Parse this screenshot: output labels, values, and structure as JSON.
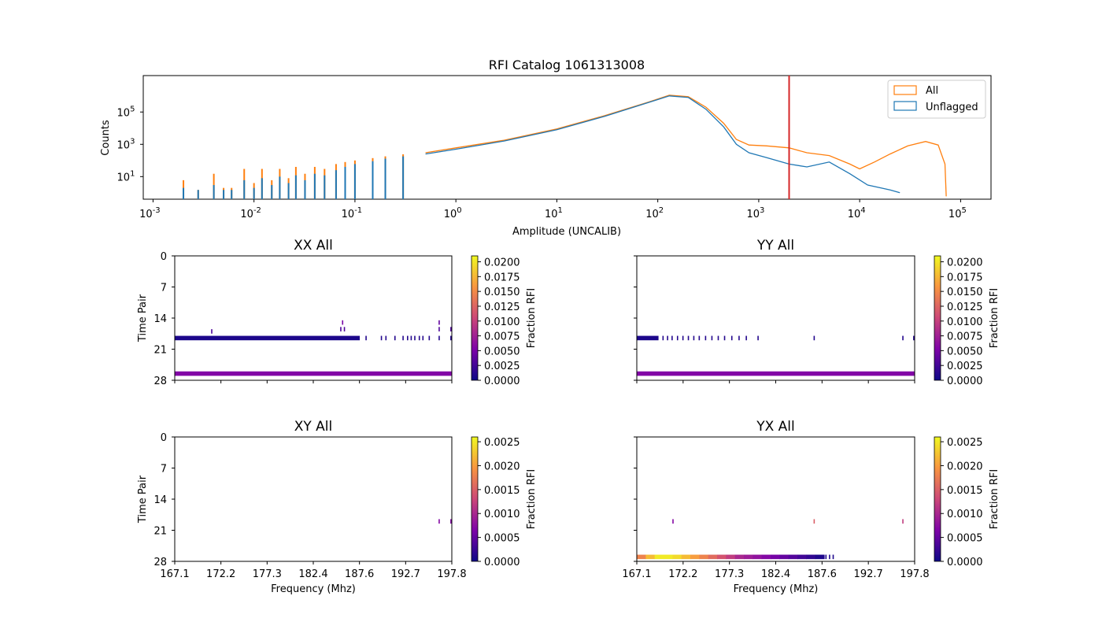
{
  "colors": {
    "all": "#ff7f0e",
    "unflagged": "#1f77b4",
    "cutoff": "#d62728",
    "cmap": [
      "#0d0887",
      "#7e03a8",
      "#cc4778",
      "#f89540",
      "#f0f921"
    ]
  },
  "chart_data": [
    {
      "type": "line",
      "title": "RFI Catalog 1061313008",
      "xlabel": "Amplitude (UNCALIB)",
      "ylabel": "Counts",
      "xscale": "log",
      "yscale": "log",
      "xlim": [
        0.0008,
        200000
      ],
      "ylim": [
        0.4,
        18000000
      ],
      "xticks": [
        {
          "e": "-3",
          "v": 0.001
        },
        {
          "e": "-2",
          "v": 0.01
        },
        {
          "e": "-1",
          "v": 0.1
        },
        {
          "e": "0",
          "v": 1
        },
        {
          "e": "1",
          "v": 10
        },
        {
          "e": "2",
          "v": 100
        },
        {
          "e": "3",
          "v": 1000
        },
        {
          "e": "4",
          "v": 10000
        },
        {
          "e": "5",
          "v": 100000
        }
      ],
      "yticks": [
        {
          "e": "1",
          "v": 10
        },
        {
          "e": "3",
          "v": 1000
        },
        {
          "e": "5",
          "v": 100000
        }
      ],
      "legend": {
        "position": "top-right",
        "entries": [
          "All",
          "Unflagged"
        ]
      },
      "vline": 2000,
      "series": [
        {
          "name": "All",
          "points": [
            [
              0.5,
              300
            ],
            [
              1,
              600
            ],
            [
              3,
              1800
            ],
            [
              10,
              9000
            ],
            [
              30,
              60000
            ],
            [
              80,
              400000
            ],
            [
              130,
              1100000
            ],
            [
              200,
              900000
            ],
            [
              300,
              200000
            ],
            [
              450,
              20000
            ],
            [
              600,
              2000
            ],
            [
              800,
              900
            ],
            [
              1200,
              800
            ],
            [
              2000,
              600
            ],
            [
              3000,
              300
            ],
            [
              5000,
              200
            ],
            [
              8000,
              60
            ],
            [
              10000,
              30
            ],
            [
              14000,
              80
            ],
            [
              20000,
              250
            ],
            [
              30000,
              800
            ],
            [
              45000,
              1500
            ],
            [
              60000,
              900
            ],
            [
              70000,
              60
            ],
            [
              72000,
              0.6
            ]
          ]
        },
        {
          "name": "Unflagged",
          "points": [
            [
              0.5,
              250
            ],
            [
              1,
              500
            ],
            [
              3,
              1600
            ],
            [
              10,
              8000
            ],
            [
              30,
              55000
            ],
            [
              80,
              380000
            ],
            [
              130,
              1000000
            ],
            [
              200,
              800000
            ],
            [
              300,
              150000
            ],
            [
              450,
              12000
            ],
            [
              600,
              1000
            ],
            [
              800,
              300
            ],
            [
              1200,
              150
            ],
            [
              2000,
              60
            ],
            [
              3000,
              40
            ],
            [
              5000,
              80
            ],
            [
              8000,
              15
            ],
            [
              12000,
              3
            ],
            [
              20000,
              1.5
            ],
            [
              25000,
              1
            ]
          ]
        }
      ],
      "spikes": [
        {
          "x": 0.002,
          "all": 6,
          "unf": 2
        },
        {
          "x": 0.0028,
          "all": 1.5,
          "unf": 1.5
        },
        {
          "x": 0.004,
          "all": 15,
          "unf": 3
        },
        {
          "x": 0.005,
          "all": 2,
          "unf": 1.5
        },
        {
          "x": 0.006,
          "all": 2,
          "unf": 1.5
        },
        {
          "x": 0.008,
          "all": 30,
          "unf": 6
        },
        {
          "x": 0.01,
          "all": 4,
          "unf": 2
        },
        {
          "x": 0.012,
          "all": 30,
          "unf": 8
        },
        {
          "x": 0.015,
          "all": 6,
          "unf": 3
        },
        {
          "x": 0.018,
          "all": 30,
          "unf": 10
        },
        {
          "x": 0.022,
          "all": 8,
          "unf": 4
        },
        {
          "x": 0.026,
          "all": 40,
          "unf": 12
        },
        {
          "x": 0.032,
          "all": 15,
          "unf": 6
        },
        {
          "x": 0.04,
          "all": 40,
          "unf": 15
        },
        {
          "x": 0.05,
          "all": 30,
          "unf": 12
        },
        {
          "x": 0.065,
          "all": 60,
          "unf": 25
        },
        {
          "x": 0.08,
          "all": 80,
          "unf": 40
        },
        {
          "x": 0.1,
          "all": 100,
          "unf": 60
        },
        {
          "x": 0.15,
          "all": 140,
          "unf": 90
        },
        {
          "x": 0.2,
          "all": 180,
          "unf": 130
        },
        {
          "x": 0.3,
          "all": 240,
          "unf": 180
        }
      ]
    },
    {
      "type": "heatmap",
      "panel_id": "xx",
      "title": "XX All",
      "xlabel": "",
      "ylabel": "Time Pair",
      "xlim": [
        167.1,
        197.8
      ],
      "ylim": [
        0,
        28
      ],
      "yticks": [
        "0",
        "7",
        "14",
        "21",
        "28"
      ],
      "xticks": [],
      "colorbar": {
        "label": "Fraction RFI",
        "max": 0.021,
        "ticks": [
          "0.0000",
          "0.0025",
          "0.0050",
          "0.0075",
          "0.0100",
          "0.0125",
          "0.0150",
          "0.0175",
          "0.0200"
        ]
      },
      "bands": [
        {
          "row": 26.5,
          "x0": 167.1,
          "x1": 197.8,
          "value": 0.0055,
          "h": 1
        },
        {
          "row": 18.5,
          "x0": 167.1,
          "x1": 187.6,
          "value": 0.0007,
          "h": 1
        }
      ],
      "dots": [
        {
          "x": 171.2,
          "row": 17,
          "value": 0.003
        },
        {
          "x": 185.5,
          "row": 16.5,
          "value": 0.003
        },
        {
          "x": 185.7,
          "row": 15,
          "value": 0.005
        },
        {
          "x": 185.9,
          "row": 16.5,
          "value": 0.003
        },
        {
          "x": 188.3,
          "row": 18.5,
          "value": 0.001
        },
        {
          "x": 190.0,
          "row": 18.5,
          "value": 0.001
        },
        {
          "x": 190.5,
          "row": 18.5,
          "value": 0.001
        },
        {
          "x": 191.5,
          "row": 18.5,
          "value": 0.001
        },
        {
          "x": 192.4,
          "row": 18.5,
          "value": 0.001
        },
        {
          "x": 192.9,
          "row": 18.5,
          "value": 0.001
        },
        {
          "x": 193.3,
          "row": 18.5,
          "value": 0.001
        },
        {
          "x": 193.7,
          "row": 18.5,
          "value": 0.001
        },
        {
          "x": 194.2,
          "row": 18.5,
          "value": 0.001
        },
        {
          "x": 194.6,
          "row": 18.5,
          "value": 0.001
        },
        {
          "x": 195.3,
          "row": 18.5,
          "value": 0.001
        },
        {
          "x": 196.4,
          "row": 15,
          "value": 0.004
        },
        {
          "x": 196.4,
          "row": 16.5,
          "value": 0.003
        },
        {
          "x": 196.4,
          "row": 18.5,
          "value": 0.001
        },
        {
          "x": 197.7,
          "row": 16.5,
          "value": 0.003
        },
        {
          "x": 197.7,
          "row": 18.5,
          "value": 0.001
        }
      ]
    },
    {
      "type": "heatmap",
      "panel_id": "yy",
      "title": "YY All",
      "xlabel": "",
      "ylabel": "",
      "xlim": [
        167.1,
        197.8
      ],
      "ylim": [
        0,
        28
      ],
      "yticks": [],
      "xticks": [],
      "colorbar": {
        "label": "Fraction RFI",
        "max": 0.021,
        "ticks": [
          "0.0000",
          "0.0025",
          "0.0050",
          "0.0075",
          "0.0100",
          "0.0125",
          "0.0150",
          "0.0175",
          "0.0200"
        ]
      },
      "bands": [
        {
          "row": 26.5,
          "x0": 167.1,
          "x1": 197.8,
          "value": 0.0055,
          "h": 1
        },
        {
          "row": 18.5,
          "x0": 167.1,
          "x1": 169.5,
          "value": 0.0007,
          "h": 1
        }
      ],
      "dots": [
        {
          "x": 170.0,
          "row": 18.5,
          "value": 0.001
        },
        {
          "x": 170.5,
          "row": 18.5,
          "value": 0.001
        },
        {
          "x": 171.0,
          "row": 18.5,
          "value": 0.001
        },
        {
          "x": 171.6,
          "row": 18.5,
          "value": 0.001
        },
        {
          "x": 172.2,
          "row": 18.5,
          "value": 0.001
        },
        {
          "x": 172.8,
          "row": 18.5,
          "value": 0.001
        },
        {
          "x": 173.4,
          "row": 18.5,
          "value": 0.001
        },
        {
          "x": 174.0,
          "row": 18.5,
          "value": 0.001
        },
        {
          "x": 174.7,
          "row": 18.5,
          "value": 0.001
        },
        {
          "x": 175.4,
          "row": 18.5,
          "value": 0.001
        },
        {
          "x": 176.1,
          "row": 18.5,
          "value": 0.001
        },
        {
          "x": 176.8,
          "row": 18.5,
          "value": 0.001
        },
        {
          "x": 177.6,
          "row": 18.5,
          "value": 0.001
        },
        {
          "x": 178.4,
          "row": 18.5,
          "value": 0.001
        },
        {
          "x": 179.2,
          "row": 18.5,
          "value": 0.001
        },
        {
          "x": 180.5,
          "row": 18.5,
          "value": 0.001
        },
        {
          "x": 186.7,
          "row": 18.5,
          "value": 0.001
        },
        {
          "x": 196.5,
          "row": 18.5,
          "value": 0.001
        },
        {
          "x": 197.7,
          "row": 18.5,
          "value": 0.001
        }
      ]
    },
    {
      "type": "heatmap",
      "panel_id": "xy",
      "title": "XY All",
      "xlabel": "Frequency (Mhz)",
      "ylabel": "Time Pair",
      "xlim": [
        167.1,
        197.8
      ],
      "ylim": [
        0,
        28
      ],
      "yticks": [
        "0",
        "7",
        "14",
        "21",
        "28"
      ],
      "xticks": [
        "167.1",
        "172.2",
        "177.3",
        "182.4",
        "187.6",
        "192.7",
        "197.8"
      ],
      "colorbar": {
        "label": "Fraction RFI",
        "max": 0.0026,
        "ticks": [
          "0.0000",
          "0.0005",
          "0.0010",
          "0.0015",
          "0.0020",
          "0.0025"
        ]
      },
      "bands": [],
      "dots": [
        {
          "x": 196.4,
          "row": 19,
          "value": 0.0007
        },
        {
          "x": 197.7,
          "row": 19,
          "value": 0.0007
        }
      ]
    },
    {
      "type": "heatmap",
      "panel_id": "yx",
      "title": "YX All",
      "xlabel": "Frequency (Mhz)",
      "ylabel": "",
      "xlim": [
        167.1,
        197.8
      ],
      "ylim": [
        0,
        28
      ],
      "yticks": [],
      "xticks": [
        "167.1",
        "172.2",
        "177.3",
        "182.4",
        "187.6",
        "192.7",
        "197.8"
      ],
      "colorbar": {
        "label": "Fraction RFI",
        "max": 0.0026,
        "ticks": [
          "0.0000",
          "0.0005",
          "0.0010",
          "0.0015",
          "0.0020",
          "0.0025"
        ]
      },
      "bands": [],
      "gradient_band": {
        "row": 27,
        "x0": 167.1,
        "x1": 187.8,
        "values": [
          0.0018,
          0.0022,
          0.0025,
          0.0025,
          0.0024,
          0.0022,
          0.002,
          0.0018,
          0.0016,
          0.0014,
          0.0012,
          0.001,
          0.0009,
          0.0008,
          0.0007,
          0.0006,
          0.0005,
          0.0004,
          0.0003,
          0.0002,
          0.0001
        ]
      },
      "dots": [
        {
          "x": 171.1,
          "row": 19,
          "value": 0.0007
        },
        {
          "x": 186.7,
          "row": 19,
          "value": 0.0015
        },
        {
          "x": 196.5,
          "row": 19,
          "value": 0.0012
        },
        {
          "x": 188.0,
          "row": 27,
          "value": 0.0001
        },
        {
          "x": 188.4,
          "row": 27,
          "value": 0.0001
        },
        {
          "x": 188.8,
          "row": 27,
          "value": 0.0001
        }
      ]
    }
  ]
}
